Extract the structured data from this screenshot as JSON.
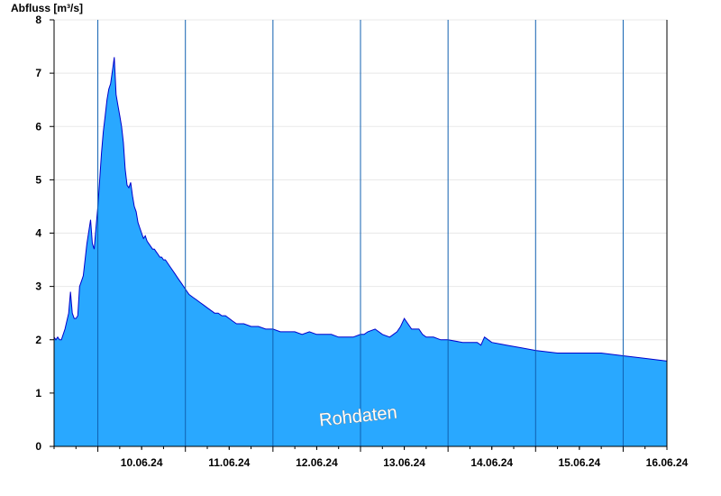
{
  "chart_data": {
    "type": "area",
    "ylabel": "Abfluss [m³/s]",
    "ylim": [
      0,
      8
    ],
    "yticks": [
      "0",
      "1",
      "2",
      "3",
      "4",
      "5",
      "6",
      "7",
      "8"
    ],
    "xlim": [
      "09.06.24 12:00",
      "16.06.24 12:00"
    ],
    "day_labels": [
      "10.06.24",
      "11.06.24",
      "12.06.24",
      "13.06.24",
      "14.06.24",
      "15.06.24",
      "16.06.24"
    ],
    "grid": true,
    "fill_color": "#29a8ff",
    "line_color": "#0000cc",
    "watermark": "Rohdaten",
    "series": [
      {
        "x": [
          "09.06.24 12:00",
          "09.06.24 12:30",
          "09.06.24 13:00",
          "09.06.24 13:30",
          "09.06.24 14:00",
          "09.06.24 15:00",
          "09.06.24 16:00",
          "09.06.24 16:30",
          "09.06.24 17:00",
          "09.06.24 17:30",
          "09.06.24 18:00",
          "09.06.24 18:30",
          "09.06.24 19:00",
          "09.06.24 19:30",
          "09.06.24 20:00",
          "09.06.24 21:00",
          "09.06.24 22:00",
          "09.06.24 22:30",
          "09.06.24 23:00",
          "09.06.24 23:30",
          "10.06.24 00:00",
          "10.06.24 00:30",
          "10.06.24 01:00",
          "10.06.24 01:30",
          "10.06.24 02:00",
          "10.06.24 02:30",
          "10.06.24 03:00",
          "10.06.24 03:30",
          "10.06.24 04:00",
          "10.06.24 04:30",
          "10.06.24 05:00",
          "10.06.24 05:30",
          "10.06.24 06:00",
          "10.06.24 06:30",
          "10.06.24 07:00",
          "10.06.24 07:30",
          "10.06.24 08:00",
          "10.06.24 08:30",
          "10.06.24 09:00",
          "10.06.24 09:30",
          "10.06.24 10:00",
          "10.06.24 10:30",
          "10.06.24 11:00",
          "10.06.24 11:30",
          "10.06.24 12:00",
          "10.06.24 12:30",
          "10.06.24 13:00",
          "10.06.24 13:30",
          "10.06.24 14:00",
          "10.06.24 14:30",
          "10.06.24 15:00",
          "10.06.24 15:30",
          "10.06.24 16:00",
          "10.06.24 16:30",
          "10.06.24 17:00",
          "10.06.24 17:30",
          "10.06.24 18:00",
          "10.06.24 18:30",
          "10.06.24 19:00",
          "10.06.24 19:30",
          "10.06.24 20:00",
          "10.06.24 21:00",
          "10.06.24 22:00",
          "10.06.24 23:00",
          "11.06.24 00:00",
          "11.06.24 01:00",
          "11.06.24 02:00",
          "11.06.24 03:00",
          "11.06.24 04:00",
          "11.06.24 05:00",
          "11.06.24 06:00",
          "11.06.24 07:00",
          "11.06.24 08:00",
          "11.06.24 09:00",
          "11.06.24 10:00",
          "11.06.24 11:00",
          "11.06.24 12:00",
          "11.06.24 13:00",
          "11.06.24 14:00",
          "11.06.24 15:00",
          "11.06.24 16:00",
          "11.06.24 18:00",
          "11.06.24 20:00",
          "11.06.24 22:00",
          "12.06.24 00:00",
          "12.06.24 02:00",
          "12.06.24 04:00",
          "12.06.24 06:00",
          "12.06.24 08:00",
          "12.06.24 10:00",
          "12.06.24 12:00",
          "12.06.24 14:00",
          "12.06.24 16:00",
          "12.06.24 18:00",
          "12.06.24 20:00",
          "12.06.24 22:00",
          "13.06.24 00:00",
          "13.06.24 01:00",
          "13.06.24 02:00",
          "13.06.24 04:00",
          "13.06.24 06:00",
          "13.06.24 08:00",
          "13.06.24 10:00",
          "13.06.24 11:00",
          "13.06.24 12:00",
          "13.06.24 13:00",
          "13.06.24 14:00",
          "13.06.24 15:00",
          "13.06.24 16:00",
          "13.06.24 17:00",
          "13.06.24 18:00",
          "13.06.24 20:00",
          "13.06.24 22:00",
          "14.06.24 00:00",
          "14.06.24 04:00",
          "14.06.24 08:00",
          "14.06.24 09:00",
          "14.06.24 10:00",
          "14.06.24 12:00",
          "14.06.24 16:00",
          "14.06.24 20:00",
          "15.06.24 00:00",
          "15.06.24 06:00",
          "15.06.24 12:00",
          "15.06.24 18:00",
          "16.06.24 00:00",
          "16.06.24 06:00",
          "16.06.24 12:00"
        ],
        "values": [
          2.05,
          2.0,
          2.05,
          2.0,
          2.0,
          2.2,
          2.5,
          2.9,
          2.5,
          2.4,
          2.4,
          2.45,
          3.0,
          3.1,
          3.2,
          3.8,
          4.25,
          3.8,
          3.7,
          4.1,
          4.5,
          5.0,
          5.5,
          5.9,
          6.2,
          6.5,
          6.7,
          6.8,
          7.05,
          7.3,
          6.6,
          6.4,
          6.2,
          6.0,
          5.7,
          5.2,
          4.9,
          4.85,
          4.95,
          4.7,
          4.5,
          4.4,
          4.2,
          4.1,
          4.0,
          3.9,
          3.95,
          3.85,
          3.8,
          3.75,
          3.7,
          3.7,
          3.65,
          3.6,
          3.55,
          3.55,
          3.5,
          3.5,
          3.45,
          3.4,
          3.35,
          3.25,
          3.15,
          3.05,
          2.95,
          2.85,
          2.8,
          2.75,
          2.7,
          2.65,
          2.6,
          2.55,
          2.5,
          2.5,
          2.45,
          2.45,
          2.4,
          2.35,
          2.3,
          2.3,
          2.3,
          2.25,
          2.25,
          2.2,
          2.2,
          2.15,
          2.15,
          2.15,
          2.1,
          2.15,
          2.1,
          2.1,
          2.1,
          2.05,
          2.05,
          2.05,
          2.1,
          2.1,
          2.15,
          2.2,
          2.1,
          2.05,
          2.15,
          2.25,
          2.4,
          2.3,
          2.2,
          2.2,
          2.2,
          2.1,
          2.05,
          2.05,
          2.0,
          2.0,
          1.95,
          1.95,
          1.9,
          2.05,
          1.95,
          1.9,
          1.85,
          1.8,
          1.75,
          1.75,
          1.75,
          1.7,
          1.65,
          1.6
        ]
      }
    ]
  }
}
